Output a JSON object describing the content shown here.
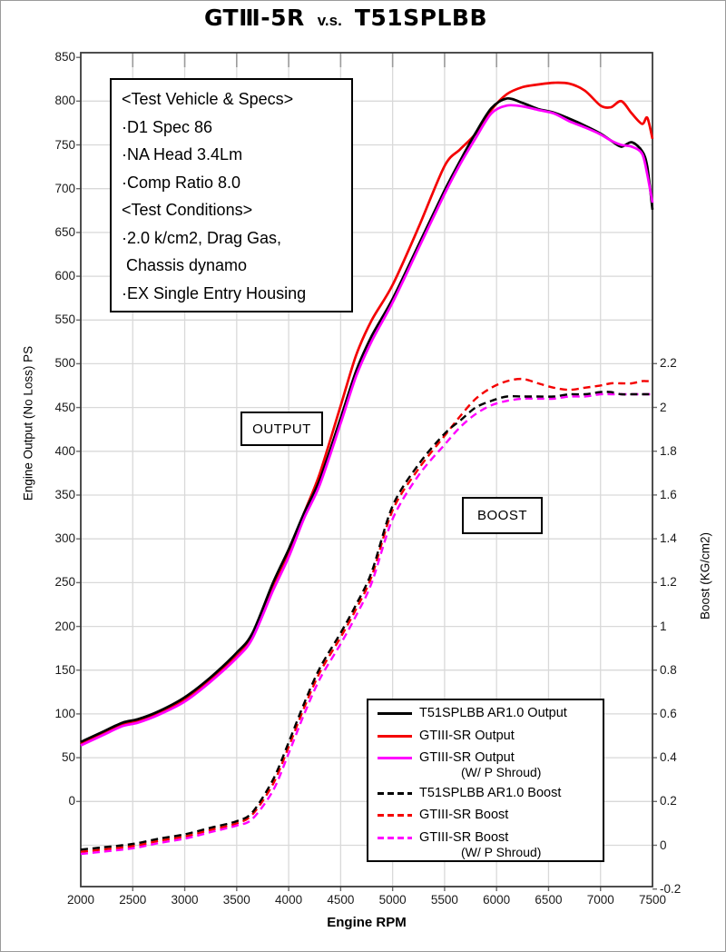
{
  "title": {
    "part1": "GTⅢ-5R",
    "part2": "v.s.",
    "part3": "T51SPLBB"
  },
  "spec_box": {
    "lines": [
      "<Test Vehicle & Specs>",
      "·D1 Spec 86",
      "·NA Head 3.4Lm",
      "·Comp Ratio 8.0",
      "<Test Conditions>",
      "·2.0 k/cm2, Drag Gas,",
      " Chassis dynamo",
      "·EX Single Entry Housing"
    ]
  },
  "overlay_labels": {
    "output": "OUTPUT",
    "boost": "BOOST"
  },
  "axes": {
    "x": {
      "label": "Engine RPM",
      "ticks": [
        2000,
        2500,
        3000,
        3500,
        4000,
        4500,
        5000,
        5500,
        6000,
        6500,
        7000,
        7500
      ]
    },
    "y_left": {
      "label": "Engine Output (No Loss) PS",
      "ticks": [
        850,
        800,
        750,
        700,
        650,
        600,
        550,
        500,
        450,
        400,
        350,
        300,
        250,
        200,
        150,
        100,
        50,
        0
      ]
    },
    "y_right": {
      "label": "Boost (KG/cm2)",
      "ticks": [
        "2.2",
        "2",
        "1.8",
        "1.6",
        "1.4",
        "1.2",
        "1",
        "0.8",
        "0.6",
        "0.4",
        "0.2",
        "0",
        "-0.2"
      ]
    }
  },
  "legend": [
    {
      "label": "T51SPLBB AR1.0 Output",
      "label2": "",
      "color": "#000000",
      "dash": false
    },
    {
      "label": "GTIII-SR Output",
      "label2": "",
      "color": "#f40000",
      "dash": false
    },
    {
      "label": "GTIII-SR Output",
      "label2": "(W/ P Shroud)",
      "color": "#ff00ff",
      "dash": false
    },
    {
      "label": "T51SPLBB AR1.0 Boost",
      "label2": "",
      "color": "#000000",
      "dash": true
    },
    {
      "label": "GTIII-SR Boost",
      "label2": "",
      "color": "#f40000",
      "dash": true
    },
    {
      "label": "GTIII-SR Boost",
      "label2": "(W/ P Shroud)",
      "color": "#ff00ff",
      "dash": true
    }
  ],
  "colors": {
    "grid": "#d9d9d9",
    "plot_border": "#3a3a3a",
    "tick": "#6b6b6b",
    "inner_tick": "#9b9b9b",
    "black_series": "#000000",
    "red_series": "#f40000",
    "magenta_series": "#ff00ff"
  },
  "chart_data": {
    "type": "line",
    "title": "GTⅢ-5R v.s. T51SPLBB",
    "xlabel": "Engine RPM",
    "ylabel_left": "Engine Output (No Loss) PS",
    "ylabel_right": "Boost (KG/cm2)",
    "x_range": [
      2000,
      7500
    ],
    "y_left_range": [
      -100,
      855
    ],
    "y_right_range": [
      -0.2,
      2.2
    ],
    "grid": true,
    "legend_position": "lower-right",
    "x": [
      2000,
      2200,
      2400,
      2550,
      2750,
      3000,
      3250,
      3500,
      3650,
      3850,
      4000,
      4150,
      4300,
      4500,
      4650,
      4800,
      5000,
      5250,
      5500,
      5650,
      5800,
      5950,
      6100,
      6250,
      6400,
      6550,
      6700,
      6850,
      7000,
      7100,
      7200,
      7300,
      7400,
      7450,
      7500
    ],
    "series": [
      {
        "name": "T51SPLBB AR1.0 Output",
        "axis": "left",
        "style": "solid",
        "color": "#000000",
        "values": [
          68,
          79,
          90,
          94,
          103,
          119,
          142,
          170,
          192,
          250,
          288,
          330,
          368,
          438,
          492,
          532,
          574,
          636,
          698,
          732,
          764,
          792,
          803,
          798,
          791,
          787,
          780,
          772,
          763,
          755,
          748,
          753,
          743,
          725,
          676
        ]
      },
      {
        "name": "GTIII-SR Output",
        "axis": "left",
        "style": "solid",
        "color": "#f40000",
        "values": [
          66,
          77,
          88,
          92,
          101,
          116,
          139,
          166,
          188,
          245,
          283,
          330,
          375,
          452,
          510,
          550,
          590,
          656,
          726,
          745,
          763,
          790,
          808,
          816,
          819,
          821,
          820,
          812,
          795,
          793,
          800,
          786,
          774,
          781,
          757
        ]
      },
      {
        "name": "GTIII-SR Output (W/ P Shroud)",
        "axis": "left",
        "style": "solid",
        "color": "#ff00ff",
        "values": [
          64,
          75,
          86,
          90,
          99,
          114,
          137,
          164,
          186,
          241,
          279,
          324,
          362,
          432,
          486,
          526,
          570,
          632,
          694,
          728,
          758,
          786,
          795,
          794,
          790,
          786,
          777,
          770,
          762,
          755,
          750,
          748,
          740,
          716,
          684
        ]
      },
      {
        "name": "T51SPLBB AR1.0 Boost",
        "axis": "right",
        "style": "dashed",
        "color": "#000000",
        "values": [
          -0.02,
          -0.01,
          0,
          0.01,
          0.03,
          0.05,
          0.08,
          0.11,
          0.15,
          0.3,
          0.47,
          0.65,
          0.81,
          0.97,
          1.1,
          1.25,
          1.55,
          1.74,
          1.88,
          1.94,
          2.0,
          2.03,
          2.05,
          2.05,
          2.05,
          2.05,
          2.06,
          2.06,
          2.07,
          2.07,
          2.06,
          2.06,
          2.06,
          2.06,
          2.06
        ]
      },
      {
        "name": "GTIII-SR Boost",
        "axis": "right",
        "style": "dashed",
        "color": "#f40000",
        "values": [
          -0.03,
          -0.02,
          -0.01,
          0,
          0.02,
          0.04,
          0.07,
          0.1,
          0.14,
          0.28,
          0.45,
          0.63,
          0.79,
          0.95,
          1.08,
          1.23,
          1.53,
          1.72,
          1.87,
          1.96,
          2.04,
          2.09,
          2.12,
          2.13,
          2.11,
          2.09,
          2.08,
          2.09,
          2.1,
          2.11,
          2.11,
          2.11,
          2.12,
          2.12,
          2.12
        ]
      },
      {
        "name": "GTIII-SR Boost (W/ P Shroud)",
        "axis": "right",
        "style": "dashed",
        "color": "#ff00ff",
        "values": [
          -0.04,
          -0.03,
          -0.02,
          -0.01,
          0.01,
          0.03,
          0.06,
          0.09,
          0.12,
          0.25,
          0.42,
          0.6,
          0.76,
          0.92,
          1.05,
          1.2,
          1.49,
          1.69,
          1.83,
          1.91,
          1.97,
          2.01,
          2.03,
          2.04,
          2.04,
          2.04,
          2.05,
          2.05,
          2.06,
          2.06,
          2.06,
          2.06,
          2.06,
          2.06,
          2.06
        ]
      }
    ]
  }
}
